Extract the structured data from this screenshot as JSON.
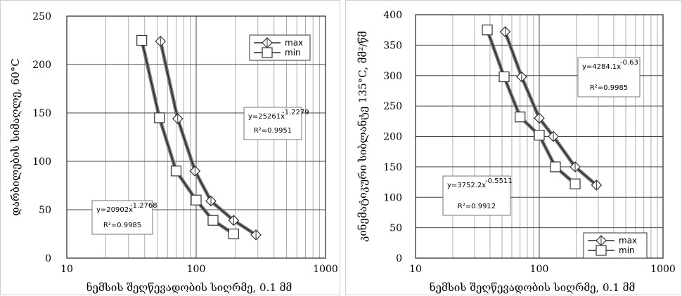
{
  "chart_data": [
    {
      "type": "scatter",
      "x_scale": "log",
      "xlim": [
        10,
        1000
      ],
      "ylim": [
        0,
        250
      ],
      "x_ticks": [
        10,
        100,
        1000
      ],
      "x_tick_labels": [
        "10",
        "100",
        "1000"
      ],
      "y_ticks": [
        0,
        50,
        100,
        150,
        200,
        250
      ],
      "y_tick_labels": [
        "0",
        "50",
        "100",
        "150",
        "200",
        "250"
      ],
      "xlabel": "ნემსის შეღწევადობის სიღრმე, 0.1 მმ",
      "ylabel": "დარბილების სიმაღლე, 60°C",
      "grid": true,
      "legend_position": "top-right",
      "series": [
        {
          "name": "max",
          "marker": "diamond-cross",
          "x": [
            53,
            72,
            98,
            130,
            195,
            290
          ],
          "y": [
            224,
            144,
            90,
            59,
            39,
            24
          ]
        },
        {
          "name": "min",
          "marker": "square",
          "x": [
            38,
            52,
            70,
            100,
            135,
            195
          ],
          "y": [
            225,
            145,
            90,
            60,
            39,
            25
          ]
        }
      ],
      "annotations": [
        {
          "lines": [
            "y=25261x",
            "-1.2279",
            "R²=0.9951"
          ],
          "anchor": "right-middle"
        },
        {
          "lines": [
            "y=20902x",
            "-1.2768",
            "R²=0.9985"
          ],
          "anchor": "left-bottom"
        }
      ]
    },
    {
      "type": "scatter",
      "x_scale": "log",
      "xlim": [
        10,
        1000
      ],
      "ylim": [
        0,
        400
      ],
      "x_ticks": [
        10,
        100,
        1000
      ],
      "x_tick_labels": [
        "10",
        "100",
        "1000"
      ],
      "y_ticks": [
        0,
        50,
        100,
        150,
        200,
        250,
        300,
        350,
        400
      ],
      "y_tick_labels": [
        "0",
        "50",
        "100",
        "150",
        "200",
        "250",
        "300",
        "350",
        "400"
      ],
      "xlabel": "ნემსის შეღწევადობის სიღრმე, 0.1 მმ",
      "ylabel": "კინემატიკური სიბლანტე 135°C, მმ²/წმ",
      "grid": true,
      "legend_position": "bottom-right",
      "series": [
        {
          "name": "max",
          "marker": "diamond-cross",
          "x": [
            53,
            72,
            100,
            130,
            195,
            290
          ],
          "y": [
            372,
            298,
            230,
            200,
            150,
            120
          ]
        },
        {
          "name": "min",
          "marker": "square",
          "x": [
            38,
            52,
            70,
            100,
            135,
            195
          ],
          "y": [
            375,
            298,
            232,
            202,
            150,
            122
          ]
        }
      ],
      "annotations": [
        {
          "lines": [
            "y=4284.1x",
            "-0.63",
            "R²=0.9985"
          ],
          "anchor": "right-top"
        },
        {
          "lines": [
            "y=3752.2x",
            "-0.5511",
            "R²=0.9912"
          ],
          "anchor": "left-bottom"
        }
      ]
    }
  ]
}
